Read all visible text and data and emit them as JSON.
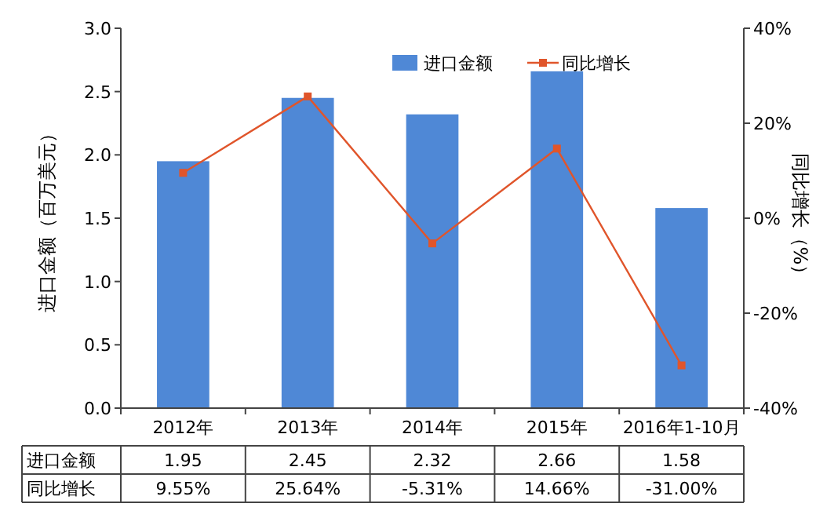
{
  "chart_data": {
    "type": "bar",
    "categories": [
      "2012年",
      "2013年",
      "2014年",
      "2015年",
      "2016年1-10月"
    ],
    "series": [
      {
        "name": "进口金额",
        "color": "#4f88d6",
        "values": [
          1.95,
          2.45,
          2.32,
          2.66,
          1.58
        ],
        "value_labels": [
          "1.95",
          "2.45",
          "2.32",
          "2.66",
          "1.58"
        ]
      },
      {
        "name": "同比增长",
        "type": "line",
        "axis": "y2",
        "color": "#e0552b",
        "values": [
          9.55,
          25.64,
          -5.31,
          14.66,
          -31.0
        ],
        "value_labels": [
          "9.55%",
          "25.64%",
          "-5.31%",
          "14.66%",
          "-31.00%"
        ]
      }
    ],
    "ylabel": "进口金额（百万美元）",
    "y2label": "同比增长（%）",
    "ylim": [
      0,
      3
    ],
    "yticks": [
      {
        "value": 0,
        "label": "0.0"
      },
      {
        "value": 0.5,
        "label": "0.5"
      },
      {
        "value": 1,
        "label": "1.0"
      },
      {
        "value": 1.5,
        "label": "1.5"
      },
      {
        "value": 2,
        "label": "2.0"
      },
      {
        "value": 2.5,
        "label": "2.5"
      },
      {
        "value": 3,
        "label": "3.0"
      }
    ],
    "y2lim": [
      -40,
      40
    ],
    "y2ticks": [
      {
        "value": -40,
        "label": "-40%"
      },
      {
        "value": -20,
        "label": "-20%"
      },
      {
        "value": 0,
        "label": "0%"
      },
      {
        "value": 20,
        "label": "20%"
      },
      {
        "value": 40,
        "label": "40%"
      }
    ],
    "marker": "square",
    "legend": "top right",
    "grid": false
  }
}
